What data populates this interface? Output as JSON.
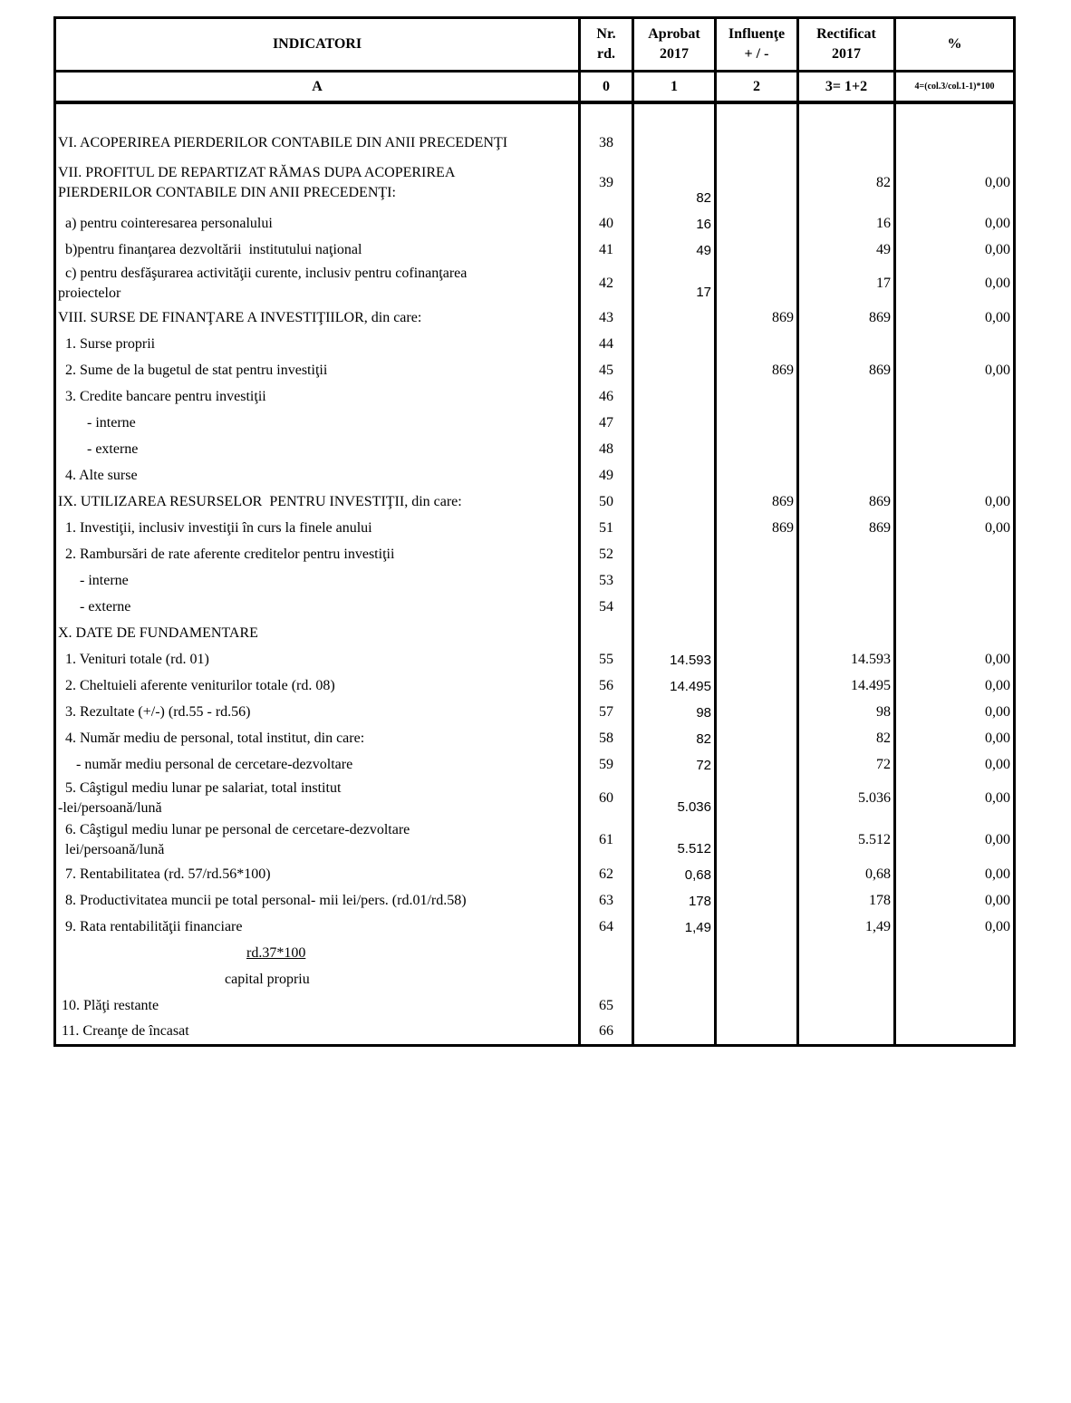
{
  "header": {
    "col_a": "INDICATORI",
    "col_nr": "Nr.\nrd.",
    "col_aprobat": "Aprobat\n2017",
    "col_influente": "Influenţe\n+ / -",
    "col_rectificat": "Rectificat\n2017",
    "col_pct": "%",
    "idx_a": "A",
    "idx_0": "0",
    "idx_1": "1",
    "idx_2": "2",
    "idx_3": "3= 1+2",
    "idx_4": "4=(col.3/col.1-1)*100"
  },
  "rows": [
    {
      "label": "VI. ACOPERIREA PIERDERILOR CONTABILE DIN ANII PRECEDENŢI",
      "nr": "38",
      "aprobat": "",
      "influente": "",
      "rectificat": "",
      "pct": ""
    },
    {
      "label": "VII. PROFITUL DE REPARTIZAT RĂMAS DUPA ACOPERIREA\nPIERDERILOR CONTABILE DIN ANII PRECEDENŢI:",
      "nr": "39",
      "aprobat": "82",
      "influente": "",
      "rectificat": "82",
      "pct": "0,00",
      "tall": true
    },
    {
      "label": "  a) pentru cointeresarea personalului",
      "nr": "40",
      "aprobat": "16",
      "influente": "",
      "rectificat": "16",
      "pct": "0,00"
    },
    {
      "label": "  b)pentru finanţarea dezvoltării  institutului naţional",
      "nr": "41",
      "aprobat": "49",
      "influente": "",
      "rectificat": "49",
      "pct": "0,00"
    },
    {
      "label": "  c) pentru desfăşurarea activităţii curente, inclusiv pentru cofinanţarea\nproiectelor",
      "nr": "42",
      "aprobat": "17",
      "influente": "",
      "rectificat": "17",
      "pct": "0,00"
    },
    {
      "label": "VIII. SURSE DE FINANŢARE A INVESTIŢIILOR, din care:",
      "nr": "43",
      "aprobat": "",
      "influente": "869",
      "rectificat": "869",
      "pct": "0,00"
    },
    {
      "label": "  1. Surse proprii",
      "nr": "44",
      "aprobat": "",
      "influente": "",
      "rectificat": "",
      "pct": ""
    },
    {
      "label": "  2. Sume de la bugetul de stat pentru investiţii",
      "nr": "45",
      "aprobat": "",
      "influente": "869",
      "rectificat": "869",
      "pct": "0,00"
    },
    {
      "label": "  3. Credite bancare pentru investiţii",
      "nr": "46",
      "aprobat": "",
      "influente": "",
      "rectificat": "",
      "pct": ""
    },
    {
      "label": "        - interne",
      "nr": "47",
      "aprobat": "",
      "influente": "",
      "rectificat": "",
      "pct": ""
    },
    {
      "label": "        - externe",
      "nr": "48",
      "aprobat": "",
      "influente": "",
      "rectificat": "",
      "pct": ""
    },
    {
      "label": "  4. Alte surse",
      "nr": "49",
      "aprobat": "",
      "influente": "",
      "rectificat": "",
      "pct": ""
    },
    {
      "label": "IX. UTILIZAREA RESURSELOR  PENTRU INVESTIŢII, din care:",
      "nr": "50",
      "aprobat": "",
      "influente": "869",
      "rectificat": "869",
      "pct": "0,00"
    },
    {
      "label": "  1. Investiţii, inclusiv investiţii în curs la finele anului",
      "nr": "51",
      "aprobat": "",
      "influente": "869",
      "rectificat": "869",
      "pct": "0,00"
    },
    {
      "label": "  2. Rambursări de rate aferente creditelor pentru investiţii",
      "nr": "52",
      "aprobat": "",
      "influente": "",
      "rectificat": "",
      "pct": ""
    },
    {
      "label": "      - interne",
      "nr": "53",
      "aprobat": "",
      "influente": "",
      "rectificat": "",
      "pct": ""
    },
    {
      "label": "      - externe",
      "nr": "54",
      "aprobat": "",
      "influente": "",
      "rectificat": "",
      "pct": ""
    },
    {
      "label": "X. DATE DE FUNDAMENTARE",
      "nr": "",
      "aprobat": "",
      "influente": "",
      "rectificat": "",
      "pct": ""
    },
    {
      "label": "  1. Venituri totale (rd. 01)",
      "nr": "55",
      "aprobat": "14.593",
      "influente": "",
      "rectificat": "14.593",
      "pct": "0,00"
    },
    {
      "label": "  2. Cheltuieli aferente veniturilor totale (rd. 08)",
      "nr": "56",
      "aprobat": "14.495",
      "influente": "",
      "rectificat": "14.495",
      "pct": "0,00"
    },
    {
      "label": "  3. Rezultate (+/-) (rd.55 - rd.56)",
      "nr": "57",
      "aprobat": "98",
      "influente": "",
      "rectificat": "98",
      "pct": "0,00"
    },
    {
      "label": "  4. Număr mediu de personal, total institut, din care:",
      "nr": "58",
      "aprobat": "82",
      "influente": "",
      "rectificat": "82",
      "pct": "0,00"
    },
    {
      "label": "     - număr mediu personal de cercetare-dezvoltare",
      "nr": "59",
      "aprobat": "72",
      "influente": "",
      "rectificat": "72",
      "pct": "0,00"
    },
    {
      "label": "  5. Câştigul mediu lunar pe salariat, total institut\n-lei/persoană/lună",
      "nr": "60",
      "aprobat": "5.036",
      "influente": "",
      "rectificat": "5.036",
      "pct": "0,00"
    },
    {
      "label": "  6. Câştigul mediu lunar pe personal de cercetare-dezvoltare\n  lei/persoană/lună",
      "nr": "61",
      "aprobat": "5.512",
      "influente": "",
      "rectificat": "5.512",
      "pct": "0,00"
    },
    {
      "label": "  7. Rentabilitatea (rd. 57/rd.56*100)",
      "nr": "62",
      "aprobat": "0,68",
      "influente": "",
      "rectificat": "0,68",
      "pct": "0,00"
    },
    {
      "label": "  8. Productivitatea muncii pe total personal- mii lei/pers. (rd.01/rd.58)",
      "nr": "63",
      "aprobat": "178",
      "influente": "",
      "rectificat": "178",
      "pct": "0,00"
    },
    {
      "label": "  9. Rata rentabilităţii financiare",
      "nr": "64",
      "aprobat": "1,49",
      "influente": "",
      "rectificat": "1,49",
      "pct": "0,00"
    },
    {
      "label": "rd.37*100",
      "nr": "",
      "aprobat": "",
      "influente": "",
      "rectificat": "",
      "pct": "",
      "formula": "num"
    },
    {
      "label": "capital propriu",
      "nr": "",
      "aprobat": "",
      "influente": "",
      "rectificat": "",
      "pct": "",
      "formula": "den"
    },
    {
      "label": " 10. Plăţi restante",
      "nr": "65",
      "aprobat": "",
      "influente": "",
      "rectificat": "",
      "pct": ""
    },
    {
      "label": " 11. Creanţe de încasat",
      "nr": "66",
      "aprobat": "",
      "influente": "",
      "rectificat": "",
      "pct": ""
    }
  ]
}
